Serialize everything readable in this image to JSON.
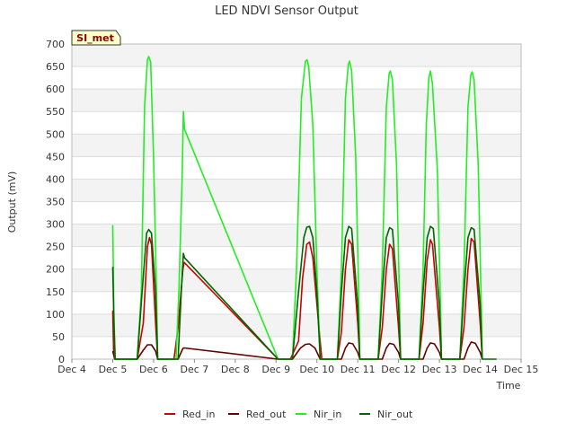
{
  "chart_data": {
    "type": "line",
    "title": "LED NDVI Sensor Output",
    "xlabel": "Time",
    "ylabel": "Output (mV)",
    "ylim": [
      0,
      700
    ],
    "yticks": [
      0,
      50,
      100,
      150,
      200,
      250,
      300,
      350,
      400,
      450,
      500,
      550,
      600,
      650,
      700
    ],
    "xlim": [
      4,
      15
    ],
    "xticks": [
      {
        "v": 4,
        "label": "Dec 4"
      },
      {
        "v": 5,
        "label": "Dec 5"
      },
      {
        "v": 6,
        "label": "Dec 6"
      },
      {
        "v": 7,
        "label": "Dec 7"
      },
      {
        "v": 8,
        "label": "Dec 8"
      },
      {
        "v": 9,
        "label": "Dec 9"
      },
      {
        "v": 10,
        "label": "Dec 10"
      },
      {
        "v": 11,
        "label": "Dec 11"
      },
      {
        "v": 12,
        "label": "Dec 12"
      },
      {
        "v": 13,
        "label": "Dec 13"
      },
      {
        "v": 14,
        "label": "Dec 14"
      },
      {
        "v": 15,
        "label": "Dec 15"
      }
    ],
    "site_label": "SI_met",
    "legend_position": "bottom",
    "series": [
      {
        "name": "Red_in",
        "color": "#cc0000",
        "points": [
          [
            5.0,
            108
          ],
          [
            5.02,
            20
          ],
          [
            5.06,
            0
          ],
          [
            5.6,
            0
          ],
          [
            5.75,
            80
          ],
          [
            5.85,
            250
          ],
          [
            5.9,
            270
          ],
          [
            5.95,
            255
          ],
          [
            6.05,
            80
          ],
          [
            6.1,
            0
          ],
          [
            6.5,
            0
          ],
          [
            6.6,
            70
          ],
          [
            6.72,
            200
          ],
          [
            6.75,
            215
          ],
          [
            9.05,
            0
          ],
          [
            9.35,
            0
          ],
          [
            9.55,
            40
          ],
          [
            9.65,
            180
          ],
          [
            9.75,
            255
          ],
          [
            9.82,
            260
          ],
          [
            9.9,
            225
          ],
          [
            10.05,
            70
          ],
          [
            10.12,
            0
          ],
          [
            10.5,
            0
          ],
          [
            10.6,
            60
          ],
          [
            10.7,
            200
          ],
          [
            10.78,
            265
          ],
          [
            10.85,
            255
          ],
          [
            11.0,
            80
          ],
          [
            11.05,
            0
          ],
          [
            11.5,
            0
          ],
          [
            11.6,
            70
          ],
          [
            11.7,
            200
          ],
          [
            11.78,
            255
          ],
          [
            11.85,
            245
          ],
          [
            12.0,
            70
          ],
          [
            12.05,
            0
          ],
          [
            12.5,
            0
          ],
          [
            12.6,
            80
          ],
          [
            12.7,
            220
          ],
          [
            12.78,
            265
          ],
          [
            12.83,
            255
          ],
          [
            13.0,
            70
          ],
          [
            13.05,
            0
          ],
          [
            13.5,
            0
          ],
          [
            13.6,
            70
          ],
          [
            13.7,
            200
          ],
          [
            13.78,
            268
          ],
          [
            13.85,
            260
          ],
          [
            14.0,
            80
          ],
          [
            14.05,
            0
          ]
        ]
      },
      {
        "name": "Red_out",
        "color": "#660000",
        "points": [
          [
            5.0,
            18
          ],
          [
            5.05,
            0
          ],
          [
            5.6,
            0
          ],
          [
            5.75,
            20
          ],
          [
            5.85,
            32
          ],
          [
            5.95,
            32
          ],
          [
            6.05,
            18
          ],
          [
            6.1,
            0
          ],
          [
            6.6,
            0
          ],
          [
            6.72,
            24
          ],
          [
            6.75,
            25
          ],
          [
            9.05,
            0
          ],
          [
            9.4,
            0
          ],
          [
            9.6,
            25
          ],
          [
            9.72,
            33
          ],
          [
            9.82,
            34
          ],
          [
            9.95,
            25
          ],
          [
            10.08,
            0
          ],
          [
            10.6,
            0
          ],
          [
            10.7,
            25
          ],
          [
            10.78,
            36
          ],
          [
            10.88,
            34
          ],
          [
            11.0,
            15
          ],
          [
            11.05,
            0
          ],
          [
            11.6,
            0
          ],
          [
            11.7,
            25
          ],
          [
            11.78,
            35
          ],
          [
            11.88,
            33
          ],
          [
            12.0,
            15
          ],
          [
            12.05,
            0
          ],
          [
            12.6,
            0
          ],
          [
            12.7,
            25
          ],
          [
            12.78,
            36
          ],
          [
            12.88,
            34
          ],
          [
            13.0,
            15
          ],
          [
            13.05,
            0
          ],
          [
            13.6,
            0
          ],
          [
            13.7,
            25
          ],
          [
            13.78,
            38
          ],
          [
            13.88,
            35
          ],
          [
            14.0,
            15
          ],
          [
            14.05,
            0
          ]
        ]
      },
      {
        "name": "Nir_in",
        "color": "#22ee22",
        "points": [
          [
            5.0,
            298
          ],
          [
            5.03,
            100
          ],
          [
            5.06,
            0
          ],
          [
            5.6,
            0
          ],
          [
            5.7,
            150
          ],
          [
            5.78,
            560
          ],
          [
            5.85,
            665
          ],
          [
            5.88,
            672
          ],
          [
            5.93,
            660
          ],
          [
            6.0,
            450
          ],
          [
            6.08,
            120
          ],
          [
            6.1,
            0
          ],
          [
            6.55,
            0
          ],
          [
            6.62,
            150
          ],
          [
            6.7,
            400
          ],
          [
            6.73,
            550
          ],
          [
            6.76,
            510
          ],
          [
            9.05,
            0
          ],
          [
            9.4,
            0
          ],
          [
            9.5,
            200
          ],
          [
            9.62,
            580
          ],
          [
            9.72,
            662
          ],
          [
            9.76,
            665
          ],
          [
            9.8,
            650
          ],
          [
            9.9,
            520
          ],
          [
            10.0,
            200
          ],
          [
            10.08,
            0
          ],
          [
            10.5,
            0
          ],
          [
            10.6,
            200
          ],
          [
            10.7,
            580
          ],
          [
            10.77,
            655
          ],
          [
            10.8,
            662
          ],
          [
            10.85,
            640
          ],
          [
            10.95,
            450
          ],
          [
            11.03,
            120
          ],
          [
            11.05,
            0
          ],
          [
            11.5,
            0
          ],
          [
            11.6,
            200
          ],
          [
            11.7,
            560
          ],
          [
            11.77,
            635
          ],
          [
            11.8,
            640
          ],
          [
            11.85,
            620
          ],
          [
            11.95,
            430
          ],
          [
            12.03,
            100
          ],
          [
            12.05,
            0
          ],
          [
            12.5,
            0
          ],
          [
            12.6,
            200
          ],
          [
            12.68,
            520
          ],
          [
            12.74,
            625
          ],
          [
            12.78,
            640
          ],
          [
            12.83,
            610
          ],
          [
            12.95,
            420
          ],
          [
            13.03,
            100
          ],
          [
            13.05,
            0
          ],
          [
            13.5,
            0
          ],
          [
            13.6,
            200
          ],
          [
            13.7,
            560
          ],
          [
            13.77,
            632
          ],
          [
            13.8,
            638
          ],
          [
            13.85,
            620
          ],
          [
            13.95,
            430
          ],
          [
            14.03,
            100
          ],
          [
            14.05,
            0
          ]
        ]
      },
      {
        "name": "Nir_out",
        "color": "#006600",
        "points": [
          [
            5.0,
            205
          ],
          [
            5.03,
            80
          ],
          [
            5.06,
            0
          ],
          [
            5.6,
            0
          ],
          [
            5.72,
            150
          ],
          [
            5.83,
            280
          ],
          [
            5.88,
            288
          ],
          [
            5.95,
            280
          ],
          [
            6.05,
            150
          ],
          [
            6.1,
            0
          ],
          [
            6.6,
            0
          ],
          [
            6.68,
            150
          ],
          [
            6.73,
            235
          ],
          [
            6.76,
            225
          ],
          [
            9.05,
            0
          ],
          [
            9.4,
            0
          ],
          [
            9.55,
            150
          ],
          [
            9.68,
            270
          ],
          [
            9.75,
            293
          ],
          [
            9.82,
            295
          ],
          [
            9.9,
            270
          ],
          [
            10.0,
            150
          ],
          [
            10.08,
            0
          ],
          [
            10.5,
            0
          ],
          [
            10.6,
            150
          ],
          [
            10.7,
            270
          ],
          [
            10.78,
            295
          ],
          [
            10.85,
            290
          ],
          [
            11.0,
            120
          ],
          [
            11.05,
            0
          ],
          [
            11.5,
            0
          ],
          [
            11.6,
            150
          ],
          [
            11.7,
            270
          ],
          [
            11.78,
            292
          ],
          [
            11.85,
            288
          ],
          [
            12.0,
            120
          ],
          [
            12.05,
            0
          ],
          [
            12.5,
            0
          ],
          [
            12.6,
            150
          ],
          [
            12.7,
            270
          ],
          [
            12.78,
            295
          ],
          [
            12.85,
            290
          ],
          [
            13.0,
            120
          ],
          [
            13.05,
            0
          ],
          [
            13.5,
            0
          ],
          [
            13.6,
            150
          ],
          [
            13.7,
            270
          ],
          [
            13.78,
            292
          ],
          [
            13.85,
            288
          ],
          [
            14.0,
            120
          ],
          [
            14.05,
            0
          ],
          [
            14.4,
            0
          ]
        ]
      }
    ]
  }
}
